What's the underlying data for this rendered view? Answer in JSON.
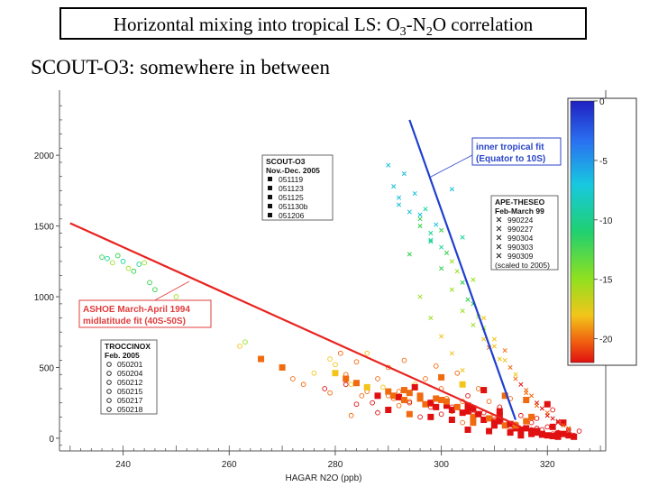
{
  "slide": {
    "title_parts": [
      "Horizontal mixing into tropical LS:  O",
      "3",
      "-N",
      "2",
      "O correlation"
    ],
    "subtitle": "SCOUT-O3:  somewhere in between"
  },
  "colors": {
    "red_fit": "#e8231f",
    "blue_fit": "#1f3fd0",
    "annotation_red": "#e23c3c",
    "annotation_blue": "#2a46c8",
    "axis": "#555555"
  },
  "chart_data": {
    "type": "scatter",
    "xlabel": "HAGAR N2O (ppb)",
    "ylabel": "",
    "xlim": [
      228,
      331
    ],
    "ylim": [
      -90,
      2460
    ],
    "xticks": [
      240,
      260,
      280,
      300,
      320
    ],
    "yticks": [
      0,
      500,
      1000,
      1500,
      2000
    ],
    "fits": [
      {
        "name": "ASHOE March-April 1994 midlatitude fit (40S-50S)",
        "color": "#e8231f",
        "points": [
          [
            230,
            1520
          ],
          [
            315,
            80
          ]
        ]
      },
      {
        "name": "inner tropical fit (Equator to 10S)",
        "color": "#1f3fd0",
        "points": [
          [
            294,
            2250
          ],
          [
            314,
            130
          ]
        ]
      }
    ],
    "series": [
      {
        "name": "TROCCINOX",
        "marker": "circle",
        "x": [
          236,
          237,
          238,
          239,
          240,
          241,
          242,
          243,
          244,
          245,
          246,
          250,
          262,
          263,
          272,
          274,
          276,
          278,
          279,
          280,
          281,
          282,
          283,
          284,
          285,
          286,
          287,
          288,
          289,
          290,
          291,
          292,
          293,
          294,
          295,
          296,
          297,
          298,
          299,
          300,
          301,
          302,
          303,
          304,
          305,
          306,
          307,
          308,
          309,
          310,
          311,
          312,
          313,
          314,
          315,
          316,
          317,
          318,
          319,
          320,
          321,
          322,
          323,
          324,
          325,
          326,
          288,
          292,
          296,
          300,
          304,
          284,
          279,
          283,
          301,
          305,
          309,
          313,
          317,
          321,
          282,
          286,
          290,
          294,
          298,
          302,
          306,
          310,
          314,
          318,
          322
        ],
        "y": [
          1280,
          1270,
          1240,
          1290,
          1250,
          1200,
          1180,
          1230,
          1240,
          1100,
          1050,
          1000,
          650,
          680,
          420,
          380,
          460,
          350,
          560,
          520,
          600,
          450,
          380,
          540,
          300,
          600,
          250,
          420,
          360,
          500,
          280,
          330,
          550,
          260,
          380,
          300,
          420,
          240,
          510,
          350,
          280,
          220,
          460,
          260,
          300,
          200,
          350,
          180,
          260,
          150,
          220,
          120,
          280,
          90,
          160,
          70,
          110,
          140,
          60,
          80,
          200,
          40,
          100,
          60,
          20,
          50,
          180,
          230,
          150,
          170,
          110,
          240,
          320,
          160,
          260,
          190,
          140,
          80,
          60,
          30,
          380,
          330,
          300,
          250,
          220,
          190,
          170,
          130,
          100,
          70,
          40
        ]
      },
      {
        "name": "SCOUT-O3",
        "marker": "square",
        "x": [
          266,
          270,
          280,
          282,
          284,
          286,
          288,
          290,
          291,
          292,
          293,
          294,
          295,
          296,
          297,
          298,
          299,
          300,
          301,
          302,
          303,
          304,
          305,
          306,
          307,
          308,
          309,
          310,
          311,
          312,
          313,
          314,
          315,
          316,
          317,
          318,
          319,
          320,
          321,
          322,
          323,
          324,
          325,
          290,
          294,
          298,
          302,
          306,
          310,
          314,
          318,
          322,
          300,
          304,
          308,
          312,
          316,
          320,
          296,
          301,
          306,
          311,
          316,
          321,
          293,
          299,
          305,
          311,
          317,
          323,
          305,
          309,
          313,
          317,
          315,
          319,
          310,
          314
        ],
        "y": [
          560,
          500,
          460,
          420,
          390,
          360,
          300,
          330,
          300,
          290,
          270,
          320,
          360,
          280,
          240,
          250,
          220,
          270,
          230,
          200,
          220,
          180,
          190,
          150,
          170,
          130,
          140,
          110,
          120,
          90,
          100,
          80,
          60,
          70,
          50,
          40,
          30,
          20,
          15,
          10,
          30,
          20,
          10,
          200,
          170,
          150,
          130,
          110,
          90,
          70,
          50,
          30,
          430,
          380,
          340,
          300,
          270,
          240,
          300,
          260,
          210,
          160,
          120,
          80,
          340,
          280,
          230,
          190,
          150,
          110,
          60,
          50,
          40,
          30,
          20,
          25,
          100,
          90
        ]
      },
      {
        "name": "APE-THESEO",
        "marker": "x",
        "x": [
          291,
          293,
          295,
          296,
          297,
          298,
          299,
          300,
          301,
          302,
          303,
          304,
          305,
          306,
          307,
          308,
          309,
          310,
          311,
          312,
          313,
          314,
          315,
          316,
          317,
          318,
          319,
          320,
          321,
          322,
          323,
          324,
          290,
          292,
          294,
          296,
          298,
          300,
          302,
          304,
          296,
          298,
          300,
          302,
          304,
          306,
          308,
          292,
          294,
          296,
          298,
          300,
          302,
          304,
          306,
          308,
          310,
          312,
          314,
          316,
          318,
          320,
          322,
          324
        ],
        "y": [
          1780,
          1870,
          1730,
          1580,
          1620,
          1390,
          1510,
          1470,
          1310,
          1760,
          1180,
          1420,
          980,
          1120,
          860,
          780,
          640,
          700,
          560,
          620,
          500,
          450,
          380,
          340,
          300,
          250,
          210,
          180,
          140,
          120,
          90,
          60,
          1930,
          1650,
          1300,
          1000,
          850,
          720,
          600,
          480,
          1550,
          1400,
          1200,
          1050,
          900,
          800,
          700,
          1700,
          1600,
          1500,
          1450,
          1350,
          1250,
          1100,
          950,
          850,
          650,
          550,
          420,
          320,
          230,
          160,
          110,
          70
        ]
      }
    ],
    "legends": [
      {
        "title": "SCOUT-O3",
        "subtitle": "Nov.-Dec. 2005",
        "marker": "square",
        "entries": [
          "051119",
          "051123",
          "051125",
          "051130b",
          "051206"
        ]
      },
      {
        "title": "APE-THESEO",
        "subtitle": "Feb-March 99",
        "marker": "x",
        "entries": [
          "990224",
          "990227",
          "990304",
          "990303",
          "990309"
        ],
        "note": "(scaled to 2005)"
      },
      {
        "title": "TROCCINOX",
        "subtitle": "Feb. 2005",
        "marker": "circle",
        "entries": [
          "050201",
          "050204",
          "050212",
          "050215",
          "050217",
          "050218"
        ]
      }
    ],
    "annotations": [
      {
        "lines": [
          "ASHOE March-April 1994",
          "midlatitude fit (40S-50S)"
        ],
        "color": "#e23c3c"
      },
      {
        "lines": [
          "inner tropical fit",
          "(Equator to 10S)"
        ],
        "color": "#2a46c8"
      }
    ],
    "colorbar": {
      "ticks": [
        0,
        -5,
        -10,
        -15,
        -20
      ],
      "range": [
        0,
        -22
      ]
    }
  }
}
